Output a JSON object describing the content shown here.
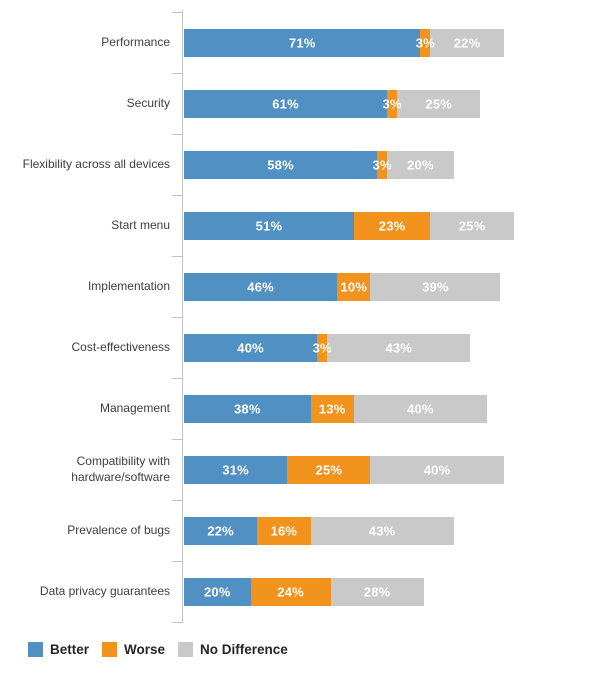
{
  "chart_data": {
    "type": "bar",
    "orientation": "horizontal",
    "stacked": true,
    "title": "",
    "xlabel": "",
    "ylabel": "",
    "xlim": [
      0,
      100
    ],
    "grid": false,
    "legend_position": "bottom-left",
    "value_label_suffix": "%",
    "categories": [
      "Performance",
      "Security",
      "Flexibility across all devices",
      "Start menu",
      "Implementation",
      "Cost-effectiveness",
      "Management",
      "Compatibility with hardware/software",
      "Prevalence of bugs",
      "Data privacy guarantees"
    ],
    "series": [
      {
        "name": "Better",
        "color": "#5190c3",
        "values": [
          71,
          61,
          58,
          51,
          46,
          40,
          38,
          31,
          22,
          20
        ]
      },
      {
        "name": "Worse",
        "color": "#f2931e",
        "values": [
          3,
          3,
          3,
          23,
          10,
          3,
          13,
          25,
          16,
          24
        ]
      },
      {
        "name": "No Difference",
        "color": "#c9c9c9",
        "values": [
          22,
          25,
          20,
          25,
          39,
          43,
          40,
          40,
          43,
          28
        ]
      }
    ]
  },
  "legend": {
    "items": [
      {
        "label": "Better",
        "color": "#5190c3"
      },
      {
        "label": "Worse",
        "color": "#f2931e"
      },
      {
        "label": "No Difference",
        "color": "#c9c9c9"
      }
    ]
  },
  "style": {
    "axis_color": "#c4c4c4",
    "label_color": "#3e3e3e",
    "value_label_color": "#ffffff",
    "background": "#ffffff"
  }
}
